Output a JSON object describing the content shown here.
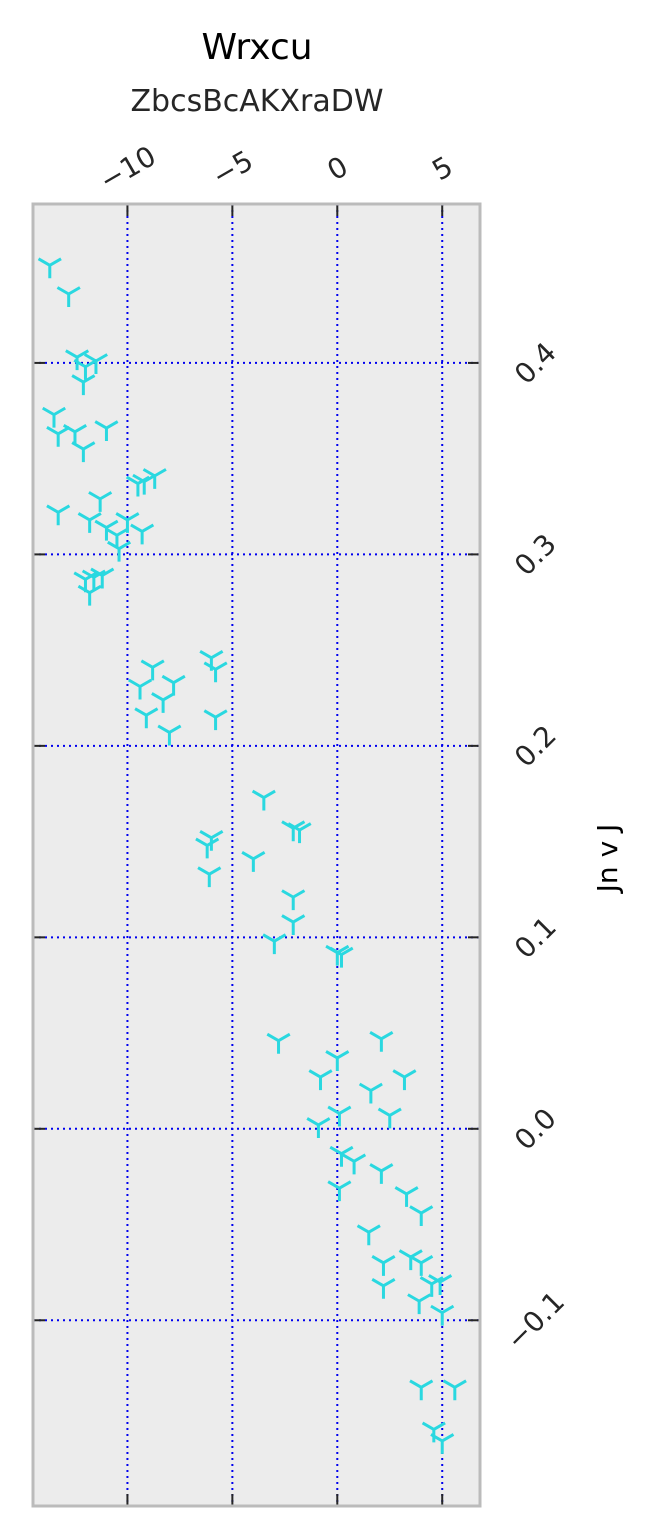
{
  "chart_data": {
    "type": "scatter",
    "title": "Wrxcu",
    "subtitle": "ZbcsBcAKXraDW",
    "ylabel": "Jn v J",
    "xlabel": "",
    "x_axis_position": "top",
    "y_axis_position": "right",
    "xlim": [
      -14.5,
      6.8
    ],
    "ylim": [
      -0.197,
      0.483
    ],
    "x_ticks": [
      -10,
      -5,
      0,
      5
    ],
    "x_tick_labels": [
      "−10",
      "−5",
      "0",
      "5"
    ],
    "y_ticks": [
      -0.1,
      0.0,
      0.1,
      0.2,
      0.3,
      0.4
    ],
    "y_tick_labels": [
      "−0.1",
      "0.0",
      "0.1",
      "0.2",
      "0.3",
      "0.4"
    ],
    "grid": true,
    "grid_style": "dotted",
    "colors": {
      "marker": "#2ad8e0",
      "grid": "#0000ee",
      "plot_background": "#ececec",
      "frame": "#bbbbbb",
      "tick": "#262626"
    },
    "marker": "tri_down",
    "series": [
      {
        "points": [
          [
            -13.7,
            0.451
          ],
          [
            -12.8,
            0.436
          ],
          [
            -12.4,
            0.403
          ],
          [
            -12.0,
            0.398
          ],
          [
            -11.5,
            0.401
          ],
          [
            -12.1,
            0.39
          ],
          [
            -13.5,
            0.373
          ],
          [
            -13.3,
            0.363
          ],
          [
            -12.5,
            0.364
          ],
          [
            -12.1,
            0.355
          ],
          [
            -11.0,
            0.366
          ],
          [
            -9.5,
            0.337
          ],
          [
            -9.2,
            0.338
          ],
          [
            -8.7,
            0.341
          ],
          [
            -11.3,
            0.329
          ],
          [
            -13.3,
            0.322
          ],
          [
            -11.8,
            0.318
          ],
          [
            -11.0,
            0.314
          ],
          [
            -10.0,
            0.318
          ],
          [
            -10.5,
            0.31
          ],
          [
            -9.3,
            0.312
          ],
          [
            -10.4,
            0.303
          ],
          [
            -12.0,
            0.287
          ],
          [
            -11.6,
            0.288
          ],
          [
            -11.2,
            0.289
          ],
          [
            -11.8,
            0.28
          ],
          [
            -9.4,
            0.231
          ],
          [
            -8.8,
            0.241
          ],
          [
            -7.8,
            0.233
          ],
          [
            -8.3,
            0.224
          ],
          [
            -9.1,
            0.216
          ],
          [
            -8.0,
            0.207
          ],
          [
            -6.0,
            0.246
          ],
          [
            -5.8,
            0.24
          ],
          [
            -5.8,
            0.215
          ],
          [
            -6.0,
            0.152
          ],
          [
            -6.2,
            0.148
          ],
          [
            -6.1,
            0.133
          ],
          [
            -3.5,
            0.173
          ],
          [
            -4.0,
            0.141
          ],
          [
            -2.1,
            0.157
          ],
          [
            -1.8,
            0.156
          ],
          [
            -2.1,
            0.121
          ],
          [
            -2.1,
            0.108
          ],
          [
            -3.0,
            0.098
          ],
          [
            0.0,
            0.092
          ],
          [
            0.2,
            0.091
          ],
          [
            -2.8,
            0.046
          ],
          [
            0.0,
            0.037
          ],
          [
            2.1,
            0.047
          ],
          [
            -0.8,
            0.027
          ],
          [
            3.2,
            0.027
          ],
          [
            1.6,
            0.02
          ],
          [
            2.5,
            0.007
          ],
          [
            0.1,
            0.008
          ],
          [
            -0.9,
            0.002
          ],
          [
            0.2,
            -0.013
          ],
          [
            0.8,
            -0.017
          ],
          [
            2.1,
            -0.022
          ],
          [
            0.1,
            -0.031
          ],
          [
            3.3,
            -0.034
          ],
          [
            4.0,
            -0.044
          ],
          [
            1.5,
            -0.054
          ],
          [
            3.5,
            -0.067
          ],
          [
            2.2,
            -0.07
          ],
          [
            4.0,
            -0.07
          ],
          [
            2.2,
            -0.082
          ],
          [
            4.5,
            -0.081
          ],
          [
            4.9,
            -0.08
          ],
          [
            3.9,
            -0.09
          ],
          [
            5.0,
            -0.096
          ],
          [
            4.0,
            -0.135
          ],
          [
            5.6,
            -0.135
          ],
          [
            4.6,
            -0.157
          ],
          [
            5.0,
            -0.163
          ]
        ]
      }
    ]
  }
}
